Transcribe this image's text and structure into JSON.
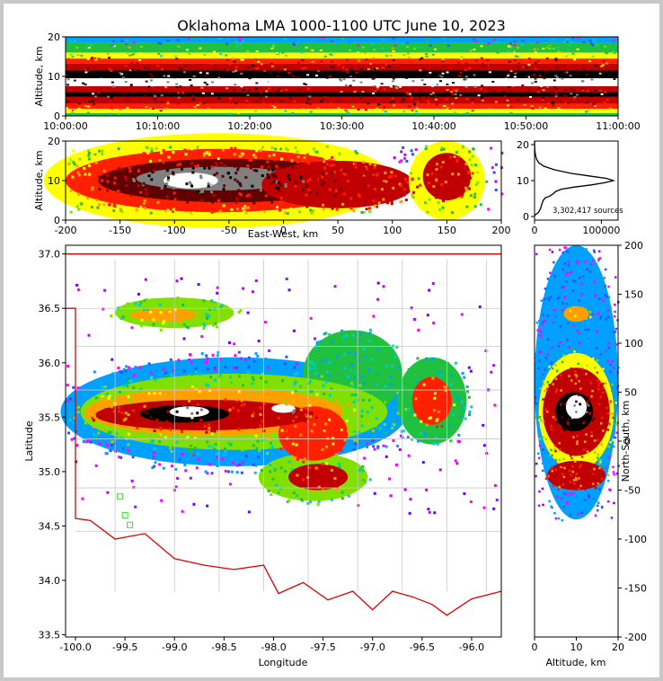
{
  "title": "Oklahoma LMA 1000-1100 UTC June 10, 2023",
  "colors": {
    "density_scale": [
      "#6a00ff",
      "#c000ff",
      "#ff00ff",
      "#3050ff",
      "#00a0ff",
      "#00d0c0",
      "#20c040",
      "#80e000",
      "#ffff00",
      "#ffa000",
      "#ff2000",
      "#c00000",
      "#600000",
      "#000000",
      "#808080",
      "#ffffff"
    ],
    "state_border": "#e00000",
    "county_lines": "#c8c8c8",
    "network_stations": "#33dd33"
  },
  "chart_data": [
    {
      "id": "time_height",
      "type": "heatmap",
      "xlabel": "",
      "ylabel": "Altitude, km",
      "x_ticks": [
        "10:00:00",
        "10:10:00",
        "10:20:00",
        "10:30:00",
        "10:40:00",
        "10:50:00",
        "11:00:00"
      ],
      "xlim": [
        "10:00:00",
        "11:00:00"
      ],
      "ylim": [
        0,
        20
      ],
      "y_ticks": [
        0,
        10,
        20
      ],
      "bands": [
        {
          "y0": 18.5,
          "y1": 20,
          "level": 4
        },
        {
          "y0": 16,
          "y1": 18.5,
          "level": 6
        },
        {
          "y0": 14.5,
          "y1": 16,
          "level": 8
        },
        {
          "y0": 13.2,
          "y1": 14.5,
          "level": 10
        },
        {
          "y0": 11.5,
          "y1": 13.2,
          "level": 11
        },
        {
          "y0": 9.5,
          "y1": 11.5,
          "level": 13
        },
        {
          "y0": 7.5,
          "y1": 9.5,
          "level": 15
        },
        {
          "y0": 6,
          "y1": 7.5,
          "level": 11
        },
        {
          "y0": 4.8,
          "y1": 6,
          "level": 13
        },
        {
          "y0": 3,
          "y1": 4.8,
          "level": 11
        },
        {
          "y0": 1.8,
          "y1": 3,
          "level": 10
        },
        {
          "y0": 0.7,
          "y1": 1.8,
          "level": 8
        },
        {
          "y0": 0,
          "y1": 0.7,
          "level": 6
        }
      ]
    },
    {
      "id": "east_west_height",
      "type": "heatmap",
      "xlabel": "East-West, km",
      "ylabel": "Altitude, km",
      "xlim": [
        -200,
        200
      ],
      "x_ticks": [
        -200,
        -150,
        -100,
        -50,
        0,
        50,
        100,
        150,
        200
      ],
      "ylim": [
        0,
        20
      ],
      "y_ticks": [
        0,
        10,
        20
      ],
      "cells": [
        {
          "x": -170,
          "z": 10,
          "rx": 40,
          "rz": 8,
          "level": 6
        },
        {
          "x": -60,
          "z": 10,
          "rx": 160,
          "rz": 12,
          "level": 8
        },
        {
          "x": -60,
          "z": 10,
          "rx": 140,
          "rz": 8,
          "level": 10
        },
        {
          "x": -50,
          "z": 10,
          "rx": 120,
          "rz": 5.5,
          "level": 12
        },
        {
          "x": -60,
          "z": 10.5,
          "rx": 75,
          "rz": 3,
          "level": 14
        },
        {
          "x": -85,
          "z": 10,
          "rx": 25,
          "rz": 2,
          "level": 15
        },
        {
          "x": 50,
          "z": 9,
          "rx": 70,
          "rz": 6,
          "level": 11
        },
        {
          "x": 150,
          "z": 10,
          "rx": 35,
          "rz": 10,
          "level": 8
        },
        {
          "x": 150,
          "z": 11,
          "rx": 22,
          "rz": 6,
          "level": 11
        }
      ]
    },
    {
      "id": "altitude_histogram",
      "type": "line",
      "xlim": [
        0,
        125000
      ],
      "x_ticks": [
        0,
        100000
      ],
      "ylim": [
        -1,
        21
      ],
      "y_ticks": [
        0,
        10,
        20
      ],
      "annotation": "3,302,417 sources",
      "points": [
        [
          0,
          0.2
        ],
        [
          2000,
          0.6
        ],
        [
          6000,
          1.2
        ],
        [
          9000,
          2.2
        ],
        [
          11000,
          3.5
        ],
        [
          13000,
          4.5
        ],
        [
          16000,
          5.2
        ],
        [
          22000,
          5.6
        ],
        [
          27000,
          6.2
        ],
        [
          32000,
          7.0
        ],
        [
          40000,
          7.6
        ],
        [
          60000,
          8.2
        ],
        [
          85000,
          8.8
        ],
        [
          105000,
          9.4
        ],
        [
          118000,
          10.0
        ],
        [
          108000,
          10.6
        ],
        [
          85000,
          11.2
        ],
        [
          55000,
          12.0
        ],
        [
          30000,
          13.0
        ],
        [
          14000,
          14.0
        ],
        [
          6000,
          15.0
        ],
        [
          3000,
          16.0
        ],
        [
          1500,
          17.0
        ],
        [
          700,
          18.0
        ],
        [
          300,
          19.0
        ],
        [
          100,
          20.0
        ],
        [
          0,
          21.0
        ]
      ]
    },
    {
      "id": "plan_view",
      "type": "heatmap",
      "xlabel": "Longitude",
      "ylabel": "Latitude",
      "xlim": [
        -100.1,
        -95.7
      ],
      "x_ticks": [
        "-100.0",
        "-99.5",
        "-99.0",
        "-98.5",
        "-98.0",
        "-97.5",
        "-97.0",
        "-96.5",
        "-96.0"
      ],
      "ylim": [
        33.48,
        37.08
      ],
      "y_ticks": [
        "33.5",
        "34.0",
        "34.5",
        "35.0",
        "35.5",
        "36.0",
        "36.5",
        "37.0"
      ],
      "cells": [
        {
          "lon": -98.4,
          "lat": 35.55,
          "rlon": 1.75,
          "rlat": 0.5,
          "level": 4
        },
        {
          "lon": -98.4,
          "lat": 35.55,
          "rlon": 1.55,
          "rlat": 0.35,
          "level": 7
        },
        {
          "lon": -98.6,
          "lat": 35.55,
          "rlon": 1.3,
          "rlat": 0.22,
          "level": 9
        },
        {
          "lon": -98.7,
          "lat": 35.52,
          "rlon": 1.1,
          "rlat": 0.14,
          "level": 11
        },
        {
          "lon": -98.9,
          "lat": 35.53,
          "rlon": 0.45,
          "rlat": 0.08,
          "level": 13
        },
        {
          "lon": -98.85,
          "lat": 35.55,
          "rlon": 0.2,
          "rlat": 0.05,
          "level": 15
        },
        {
          "lon": -97.9,
          "lat": 35.58,
          "rlon": 0.12,
          "rlat": 0.04,
          "level": 15
        },
        {
          "lon": -99.0,
          "lat": 36.46,
          "rlon": 0.6,
          "rlat": 0.14,
          "level": 7
        },
        {
          "lon": -99.1,
          "lat": 36.44,
          "rlon": 0.35,
          "rlat": 0.06,
          "level": 9
        },
        {
          "lon": -97.2,
          "lat": 35.9,
          "rlon": 0.5,
          "rlat": 0.4,
          "level": 6
        },
        {
          "lon": -97.6,
          "lat": 35.35,
          "rlon": 0.35,
          "rlat": 0.25,
          "level": 10
        },
        {
          "lon": -97.6,
          "lat": 34.95,
          "rlon": 0.55,
          "rlat": 0.22,
          "level": 7
        },
        {
          "lon": -97.55,
          "lat": 34.95,
          "rlon": 0.3,
          "rlat": 0.12,
          "level": 11
        },
        {
          "lon": -96.4,
          "lat": 35.65,
          "rlon": 0.35,
          "rlat": 0.4,
          "level": 6
        },
        {
          "lon": -96.4,
          "lat": 35.65,
          "rlon": 0.2,
          "rlat": 0.22,
          "level": 10
        }
      ],
      "stations": [
        [
          -99.55,
          34.77
        ],
        [
          -99.5,
          34.6
        ],
        [
          -99.45,
          34.51
        ]
      ]
    },
    {
      "id": "north_south_height",
      "type": "heatmap",
      "xlabel": "Altitude, km",
      "ylabel": "North-South, km",
      "xlim": [
        0,
        20
      ],
      "x_ticks": [
        0,
        10,
        20
      ],
      "ylim": [
        -200,
        200
      ],
      "y_ticks": [
        -200,
        -150,
        -100,
        -50,
        0,
        50,
        100,
        150,
        200
      ],
      "cells": [
        {
          "z": 10,
          "y": 60,
          "rz": 10,
          "ry": 140,
          "level": 4
        },
        {
          "z": 10,
          "y": 30,
          "rz": 9,
          "ry": 60,
          "level": 8
        },
        {
          "z": 10,
          "y": 30,
          "rz": 8,
          "ry": 45,
          "level": 11
        },
        {
          "z": 9.5,
          "y": 30,
          "rz": 4.5,
          "ry": 20,
          "level": 13
        },
        {
          "z": 10,
          "y": 35,
          "rz": 2.5,
          "ry": 12,
          "level": 15
        },
        {
          "z": 10,
          "y": 130,
          "rz": 3,
          "ry": 8,
          "level": 9
        },
        {
          "z": 10,
          "y": -35,
          "rz": 7,
          "ry": 15,
          "level": 11
        }
      ]
    }
  ]
}
